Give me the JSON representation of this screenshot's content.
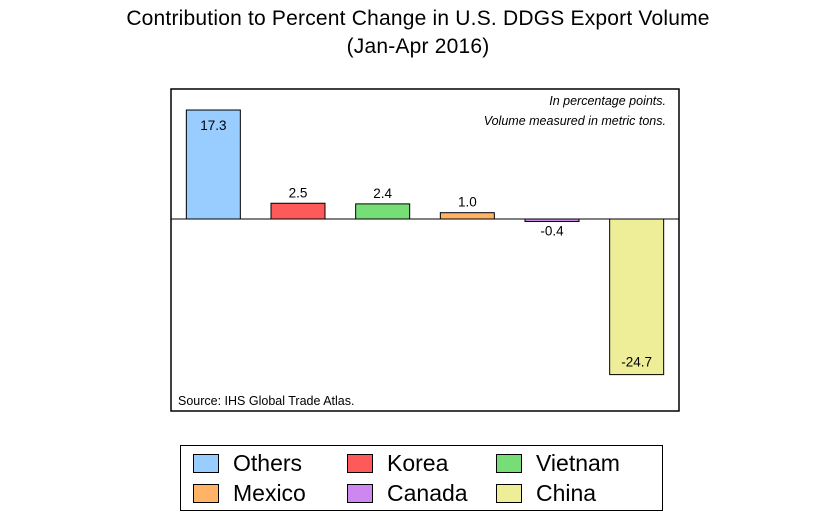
{
  "title": "Contribution to Percent Change in U.S. DDGS Export Volume",
  "subtitle": "(Jan-Apr 2016)",
  "notes": [
    "In percentage points.",
    "Volume measured in metric tons."
  ],
  "source": "Source: IHS Global Trade Atlas.",
  "chart_data": {
    "type": "bar",
    "title": "Contribution to Percent Change in U.S. DDGS Export Volume",
    "subtitle": "(Jan-Apr 2016)",
    "categories": [
      "Others",
      "Korea",
      "Vietnam",
      "Mexico",
      "Canada",
      "China"
    ],
    "values": [
      17.3,
      2.5,
      2.4,
      1.0,
      -0.4,
      -24.7
    ],
    "data_labels": [
      "17.3",
      "2.5",
      "2.4",
      "1.0",
      "-0.4",
      "-24.7"
    ],
    "colors": [
      "#99ccff",
      "#ff5a5a",
      "#77dd77",
      "#ffb366",
      "#cc88ee",
      "#eeee99"
    ],
    "xlabel": "",
    "ylabel": "",
    "ylim": [
      -29,
      20
    ],
    "grid": false,
    "legend_placement": "bottom"
  },
  "legend": [
    {
      "label": "Others",
      "color": "#99ccff"
    },
    {
      "label": "Korea",
      "color": "#ff5a5a"
    },
    {
      "label": "Vietnam",
      "color": "#77dd77"
    },
    {
      "label": "Mexico",
      "color": "#ffb366"
    },
    {
      "label": "Canada",
      "color": "#cc88ee"
    },
    {
      "label": "China",
      "color": "#eeee99"
    }
  ]
}
